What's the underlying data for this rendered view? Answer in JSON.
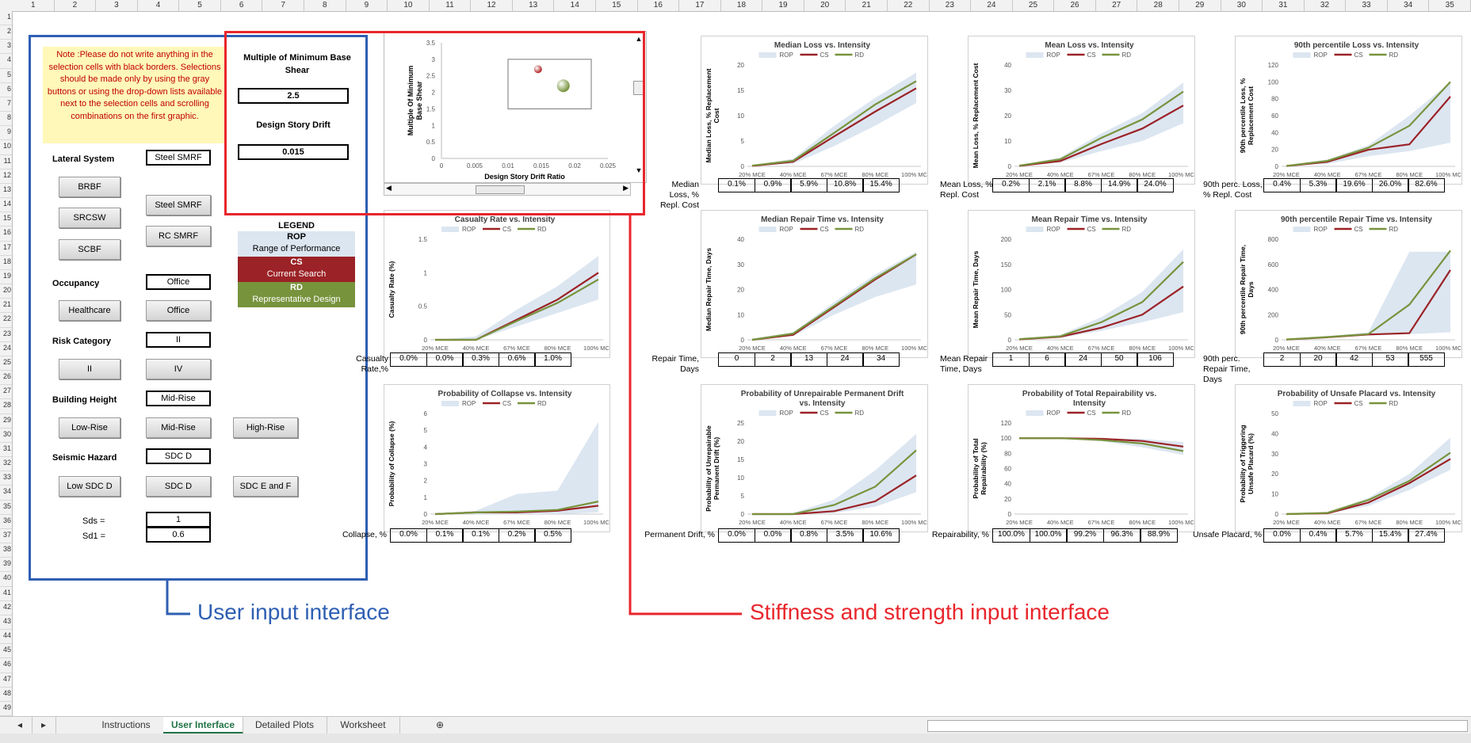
{
  "columns": [
    "1",
    "2",
    "3",
    "4",
    "5",
    "6",
    "7",
    "8",
    "9",
    "10",
    "11",
    "12",
    "13",
    "14",
    "15",
    "16",
    "17",
    "18",
    "19",
    "20",
    "21",
    "22",
    "23",
    "24",
    "25",
    "26",
    "27",
    "28",
    "29",
    "30",
    "31",
    "32",
    "33",
    "34",
    "35"
  ],
  "rows": [
    "1",
    "2",
    "3",
    "4",
    "5",
    "6",
    "7",
    "8",
    "9",
    "10",
    "11",
    "12",
    "13",
    "14",
    "15",
    "16",
    "17",
    "18",
    "19",
    "20",
    "21",
    "22",
    "23",
    "24",
    "25",
    "26",
    "27",
    "28",
    "29",
    "30",
    "31",
    "32",
    "33",
    "34",
    "35",
    "36",
    "37",
    "38",
    "39",
    "40",
    "41",
    "42",
    "43",
    "44",
    "45",
    "46",
    "47",
    "48",
    "49"
  ],
  "note": "Note :Please do not write anything in the selection cells with black borders. Selections should be made only by using the gray buttons or using the drop-down lists available next to the selection cells and scrolling combinations on the first graphic.",
  "inputs": {
    "lateral_label": "Lateral System",
    "lateral_value": "Steel SMRF",
    "btn_brbf": "BRBF",
    "btn_srcsw": "SRCSW",
    "btn_scbf": "SCBF",
    "btn_steel": "Steel SMRF",
    "btn_rc": "RC SMRF",
    "occupancy_label": "Occupancy",
    "occupancy_value": "Office",
    "btn_health": "Healthcare",
    "btn_office": "Office",
    "risk_label": "Risk Category",
    "risk_value": "II",
    "btn_ii": "II",
    "btn_iv": "IV",
    "height_label": "Building Height",
    "height_value": "Mid-Rise",
    "btn_low": "Low-Rise",
    "btn_mid": "Mid-Rise",
    "btn_high": "High-Rise",
    "hazard_label": "Seismic Hazard",
    "hazard_value": "SDC D",
    "btn_lowsdc": "Low SDC D",
    "btn_sdcd": "SDC D",
    "btn_sdce": "SDC E and  F",
    "sds_label": "Sds =",
    "sds_value": "1",
    "sd1_label": "Sd1 =",
    "sd1_value": "0.6"
  },
  "stiffness": {
    "mult_label": "Multiple of Minimum Base Shear",
    "mult_value": "2.5",
    "drift_label": "Design Story Drift",
    "drift_value": "0.015"
  },
  "legend": {
    "title": "LEGEND",
    "rop": "ROP",
    "rop_desc": "Range of Performance",
    "cs": "CS",
    "cs_desc": "Current Search",
    "rd": "RD",
    "rd_desc": "Representative Design",
    "colors": {
      "rop": "#dce6f1",
      "cs": "#9b2226",
      "rd": "#77933c"
    }
  },
  "annotations": {
    "user": "User input interface",
    "stiffness": "Stiffness and strength input interface"
  },
  "tabs": [
    "Instructions",
    "User Interface",
    "Detailed Plots",
    "Worksheet"
  ],
  "active_tab": "User Interface",
  "chart_data": [
    {
      "type": "scatter",
      "id": "drift-vs-shear",
      "title": "",
      "xlabel": "Design Story Drift Ratio",
      "ylabel": "Multiple Of Minimum Base Shear",
      "xlim": [
        0,
        0.025
      ],
      "ylim": [
        0,
        3.5
      ],
      "x_ticks": [
        "0",
        "0.005",
        "0.01",
        "0.015",
        "0.02",
        "0.025"
      ],
      "y_ticks": [
        "0",
        "0.5",
        "1",
        "1.5",
        "2",
        "2.5",
        "3",
        "3.5"
      ],
      "points": [
        {
          "x": 0.0145,
          "y": 2.7,
          "color": "#b22222"
        },
        {
          "x": 0.0183,
          "y": 2.2,
          "color": "#77933c"
        }
      ],
      "box": {
        "x": [
          0.01,
          0.0225
        ],
        "y": [
          1.5,
          3.0
        ]
      }
    },
    {
      "type": "line",
      "id": "median-loss",
      "title": "Median Loss vs. Intensity",
      "ylabel": "Median Loss, % Replacement Cost",
      "categories": [
        "20% MCE",
        "40% MCE",
        "67% MCE",
        "80% MCE",
        "100% MCE"
      ],
      "y_ticks": [
        "0",
        "5",
        "10",
        "15",
        "20"
      ],
      "ylim": [
        0,
        20
      ],
      "rop_low": [
        0.05,
        0.5,
        4,
        8,
        12.5
      ],
      "rop_high": [
        0.2,
        1.5,
        8,
        13.5,
        18.5
      ],
      "cs": [
        0.1,
        0.9,
        5.9,
        10.8,
        15.4
      ],
      "rd": [
        0.15,
        1.1,
        6.6,
        12.2,
        16.8
      ],
      "row_label": "Median Loss, % Repl. Cost",
      "row_values": [
        "0.1%",
        "0.9%",
        "5.9%",
        "10.8%",
        "15.4%"
      ]
    },
    {
      "type": "line",
      "id": "mean-loss",
      "title": "Mean Loss vs. Intensity",
      "ylabel": "Mean Loss, % Replacement Cost",
      "categories": [
        "20% MCE",
        "40% MCE",
        "67% MCE",
        "80% MCE",
        "100% MCE"
      ],
      "y_ticks": [
        "0",
        "10",
        "20",
        "30",
        "40"
      ],
      "ylim": [
        0,
        40
      ],
      "rop_low": [
        0.1,
        1.5,
        6,
        10,
        17
      ],
      "rop_high": [
        0.4,
        3.5,
        13,
        21,
        33
      ],
      "cs": [
        0.2,
        2.1,
        8.8,
        14.9,
        24.0
      ],
      "rd": [
        0.3,
        2.8,
        11.2,
        18.5,
        29.5
      ],
      "row_label": "Mean Loss, % Repl. Cost",
      "row_values": [
        "0.2%",
        "2.1%",
        "8.8%",
        "14.9%",
        "24.0%"
      ]
    },
    {
      "type": "line",
      "id": "p90-loss",
      "title": "90th percentile Loss vs. Intensity",
      "ylabel": "90th percentile Loss, % Replacement Cost",
      "categories": [
        "20% MCE",
        "40% MCE",
        "67% MCE",
        "80% MCE",
        "100% MCE"
      ],
      "y_ticks": [
        "0",
        "20",
        "40",
        "60",
        "80",
        "100",
        "120"
      ],
      "ylim": [
        0,
        120
      ],
      "rop_low": [
        0.2,
        3,
        12,
        18,
        28
      ],
      "rop_high": [
        0.8,
        8,
        25,
        60,
        100
      ],
      "cs": [
        0.4,
        5.3,
        19.6,
        26.0,
        82.6
      ],
      "rd": [
        0.5,
        6.5,
        22,
        48,
        100
      ],
      "row_label": "90th perc. Loss, % Repl. Cost",
      "row_values": [
        "0.4%",
        "5.3%",
        "19.6%",
        "26.0%",
        "82.6%"
      ]
    },
    {
      "type": "line",
      "id": "casualty",
      "title": "Casualty Rate vs. Intensity",
      "ylabel": "Casualty Rate (%)",
      "categories": [
        "20% MCE",
        "40% MCE",
        "67% MCE",
        "80% MCE",
        "100% MCE"
      ],
      "y_ticks": [
        "0",
        "0.5",
        "1",
        "1.5"
      ],
      "ylim": [
        0,
        1.5
      ],
      "rop_low": [
        0,
        0,
        0.2,
        0.4,
        0.6
      ],
      "rop_high": [
        0,
        0.05,
        0.45,
        0.8,
        1.25
      ],
      "cs": [
        0,
        0,
        0.3,
        0.6,
        1.0
      ],
      "rd": [
        0,
        0,
        0.28,
        0.55,
        0.9
      ],
      "row_label": "Casualty Rate,%",
      "row_values": [
        "0.0%",
        "0.0%",
        "0.3%",
        "0.6%",
        "1.0%"
      ]
    },
    {
      "type": "line",
      "id": "median-repair",
      "title": "Median Repair Time vs. Intensity",
      "ylabel": "Median Repair Time, Days",
      "categories": [
        "20% MCE",
        "40% MCE",
        "67% MCE",
        "80% MCE",
        "100% MCE"
      ],
      "y_ticks": [
        "0",
        "10",
        "20",
        "30",
        "40"
      ],
      "ylim": [
        0,
        40
      ],
      "rop_low": [
        0,
        1.5,
        10,
        17,
        22
      ],
      "rop_high": [
        0.5,
        3,
        15,
        26,
        35
      ],
      "cs": [
        0,
        2,
        13,
        24,
        34
      ],
      "rd": [
        0,
        2.5,
        13.5,
        24.5,
        34
      ],
      "row_label": "Repair Time, Days",
      "row_values": [
        "0",
        "2",
        "13",
        "24",
        "34"
      ]
    },
    {
      "type": "line",
      "id": "mean-repair",
      "title": "Mean Repair Time vs. Intensity",
      "ylabel": "Mean Repair Time, Days",
      "categories": [
        "20% MCE",
        "40% MCE",
        "67% MCE",
        "80% MCE",
        "100% MCE"
      ],
      "y_ticks": [
        "0",
        "50",
        "100",
        "150",
        "200"
      ],
      "ylim": [
        0,
        200
      ],
      "rop_low": [
        0,
        4,
        18,
        35,
        55
      ],
      "rop_high": [
        2,
        10,
        45,
        95,
        180
      ],
      "cs": [
        1,
        6,
        24,
        50,
        106
      ],
      "rd": [
        1.5,
        7,
        35,
        75,
        155
      ],
      "row_label": "Mean Repair Time, Days",
      "row_values": [
        "1",
        "6",
        "24",
        "50",
        "106"
      ]
    },
    {
      "type": "line",
      "id": "p90-repair",
      "title": "90th percentile Repair Time vs. Intensity",
      "ylabel": "90th percentile Repair Time, Days",
      "categories": [
        "20% MCE",
        "40% MCE",
        "67% MCE",
        "80% MCE",
        "100% MCE"
      ],
      "y_ticks": [
        "0",
        "200",
        "400",
        "600",
        "800"
      ],
      "ylim": [
        0,
        800
      ],
      "rop_low": [
        1,
        15,
        35,
        45,
        60
      ],
      "rop_high": [
        4,
        30,
        60,
        700,
        700
      ],
      "cs": [
        2,
        20,
        42,
        53,
        555
      ],
      "rd": [
        3,
        22,
        45,
        280,
        710
      ],
      "row_label": "90th perc. Repair Time, Days",
      "row_values": [
        "2",
        "20",
        "42",
        "53",
        "555"
      ]
    },
    {
      "type": "line",
      "id": "collapse",
      "title": "Probability of Collapse vs. Intensity",
      "ylabel": "Probability of Collapse (%)",
      "categories": [
        "20% MCE",
        "40% MCE",
        "67% MCE",
        "80% MCE",
        "100% MCE"
      ],
      "y_ticks": [
        "0",
        "1",
        "2",
        "3",
        "4",
        "5",
        "6"
      ],
      "ylim": [
        0,
        6
      ],
      "rop_low": [
        0,
        0,
        0,
        0,
        0.1
      ],
      "rop_high": [
        0,
        0.2,
        1.2,
        1.4,
        5.5
      ],
      "cs": [
        0,
        0.1,
        0.1,
        0.2,
        0.5
      ],
      "rd": [
        0,
        0.1,
        0.15,
        0.25,
        0.75
      ],
      "row_label": "Collapse, %",
      "row_values": [
        "0.0%",
        "0.1%",
        "0.1%",
        "0.2%",
        "0.5%"
      ]
    },
    {
      "type": "line",
      "id": "perm-drift",
      "title": "Probability of Unrepairable Permanent Drift vs. Intensity",
      "ylabel": "Probability of Unrepairable Permanent Drift (%)",
      "categories": [
        "20% MCE",
        "40% MCE",
        "67% MCE",
        "80% MCE",
        "100% MCE"
      ],
      "y_ticks": [
        "0",
        "5",
        "10",
        "15",
        "20",
        "25"
      ],
      "ylim": [
        0,
        25
      ],
      "rop_low": [
        0,
        0,
        0.3,
        2,
        6
      ],
      "rop_high": [
        0,
        0.3,
        4,
        12,
        22
      ],
      "cs": [
        0,
        0,
        0.8,
        3.5,
        10.6
      ],
      "rd": [
        0,
        0,
        2.5,
        7.5,
        17.5
      ],
      "row_label": "Permanent Drift, %",
      "row_values": [
        "0.0%",
        "0.0%",
        "0.8%",
        "3.5%",
        "10.6%"
      ]
    },
    {
      "type": "line",
      "id": "repairability",
      "title": "Probability of Total Repairability vs. Intensity",
      "ylabel": "Probability of Total Repairability (%)",
      "categories": [
        "20% MCE",
        "40% MCE",
        "67% MCE",
        "80% MCE",
        "100% MCE"
      ],
      "y_ticks": [
        "0",
        "20",
        "40",
        "60",
        "80",
        "100",
        "120"
      ],
      "ylim": [
        0,
        120
      ],
      "rop_low": [
        100,
        99.5,
        96,
        88,
        78
      ],
      "rop_high": [
        100,
        100,
        100,
        99,
        95
      ],
      "cs": [
        100,
        100,
        99.2,
        96.3,
        88.9
      ],
      "rd": [
        100,
        100,
        97.5,
        93,
        83
      ],
      "row_label": "Repairability, %",
      "row_values": [
        "100.0%",
        "100.0%",
        "99.2%",
        "96.3%",
        "88.9%"
      ]
    },
    {
      "type": "line",
      "id": "unsafe-placard",
      "title": "Probability of Unsafe Placard vs. Intensity",
      "ylabel": "Probability of Triggering Unsafe Placard (%)",
      "categories": [
        "20% MCE",
        "40% MCE",
        "67% MCE",
        "80% MCE",
        "100% MCE"
      ],
      "y_ticks": [
        "0",
        "10",
        "20",
        "30",
        "40",
        "50"
      ],
      "ylim": [
        0,
        50
      ],
      "rop_low": [
        0,
        0.2,
        4,
        12,
        22
      ],
      "rop_high": [
        0,
        1,
        8,
        20,
        38
      ],
      "cs": [
        0,
        0.4,
        5.7,
        15.4,
        27.4
      ],
      "rd": [
        0,
        0.6,
        7,
        16.5,
        30.5
      ],
      "row_label": "Unsafe Placard, %",
      "row_values": [
        "0.0%",
        "0.4%",
        "5.7%",
        "15.4%",
        "27.4%"
      ]
    }
  ]
}
